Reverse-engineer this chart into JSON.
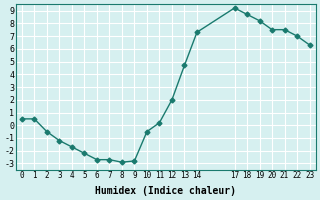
{
  "x": [
    0,
    1,
    2,
    3,
    4,
    5,
    6,
    7,
    8,
    9,
    10,
    11,
    12,
    13,
    14,
    17,
    18,
    19,
    20,
    21,
    22,
    23
  ],
  "y": [
    0.5,
    0.5,
    -0.5,
    -1.2,
    -1.7,
    -2.2,
    -2.7,
    -2.7,
    -2.9,
    -2.8,
    -0.5,
    0.2,
    2.0,
    4.7,
    7.3,
    9.2,
    8.7,
    8.2,
    7.5,
    7.5,
    7.0,
    6.3
  ],
  "xlabel": "Humidex (Indice chaleur)",
  "xlim": [
    -0.5,
    23.5
  ],
  "ylim": [
    -3.5,
    9.5
  ],
  "yticks": [
    -3,
    -2,
    -1,
    0,
    1,
    2,
    3,
    4,
    5,
    6,
    7,
    8,
    9
  ],
  "xticks": [
    0,
    1,
    2,
    3,
    4,
    5,
    6,
    7,
    8,
    9,
    10,
    11,
    12,
    13,
    14,
    17,
    18,
    19,
    20,
    21,
    22,
    23
  ],
  "xtick_labels": [
    "0",
    "1",
    "2",
    "3",
    "4",
    "5",
    "6",
    "7",
    "8",
    "9",
    "10",
    "11",
    "12",
    "13",
    "14",
    "17",
    "18",
    "19",
    "20",
    "21",
    "22",
    "23"
  ],
  "line_color": "#1a7a6e",
  "marker": "D",
  "marker_size": 2.5,
  "bg_color": "#d6f0f0",
  "grid_color": "#ffffff"
}
